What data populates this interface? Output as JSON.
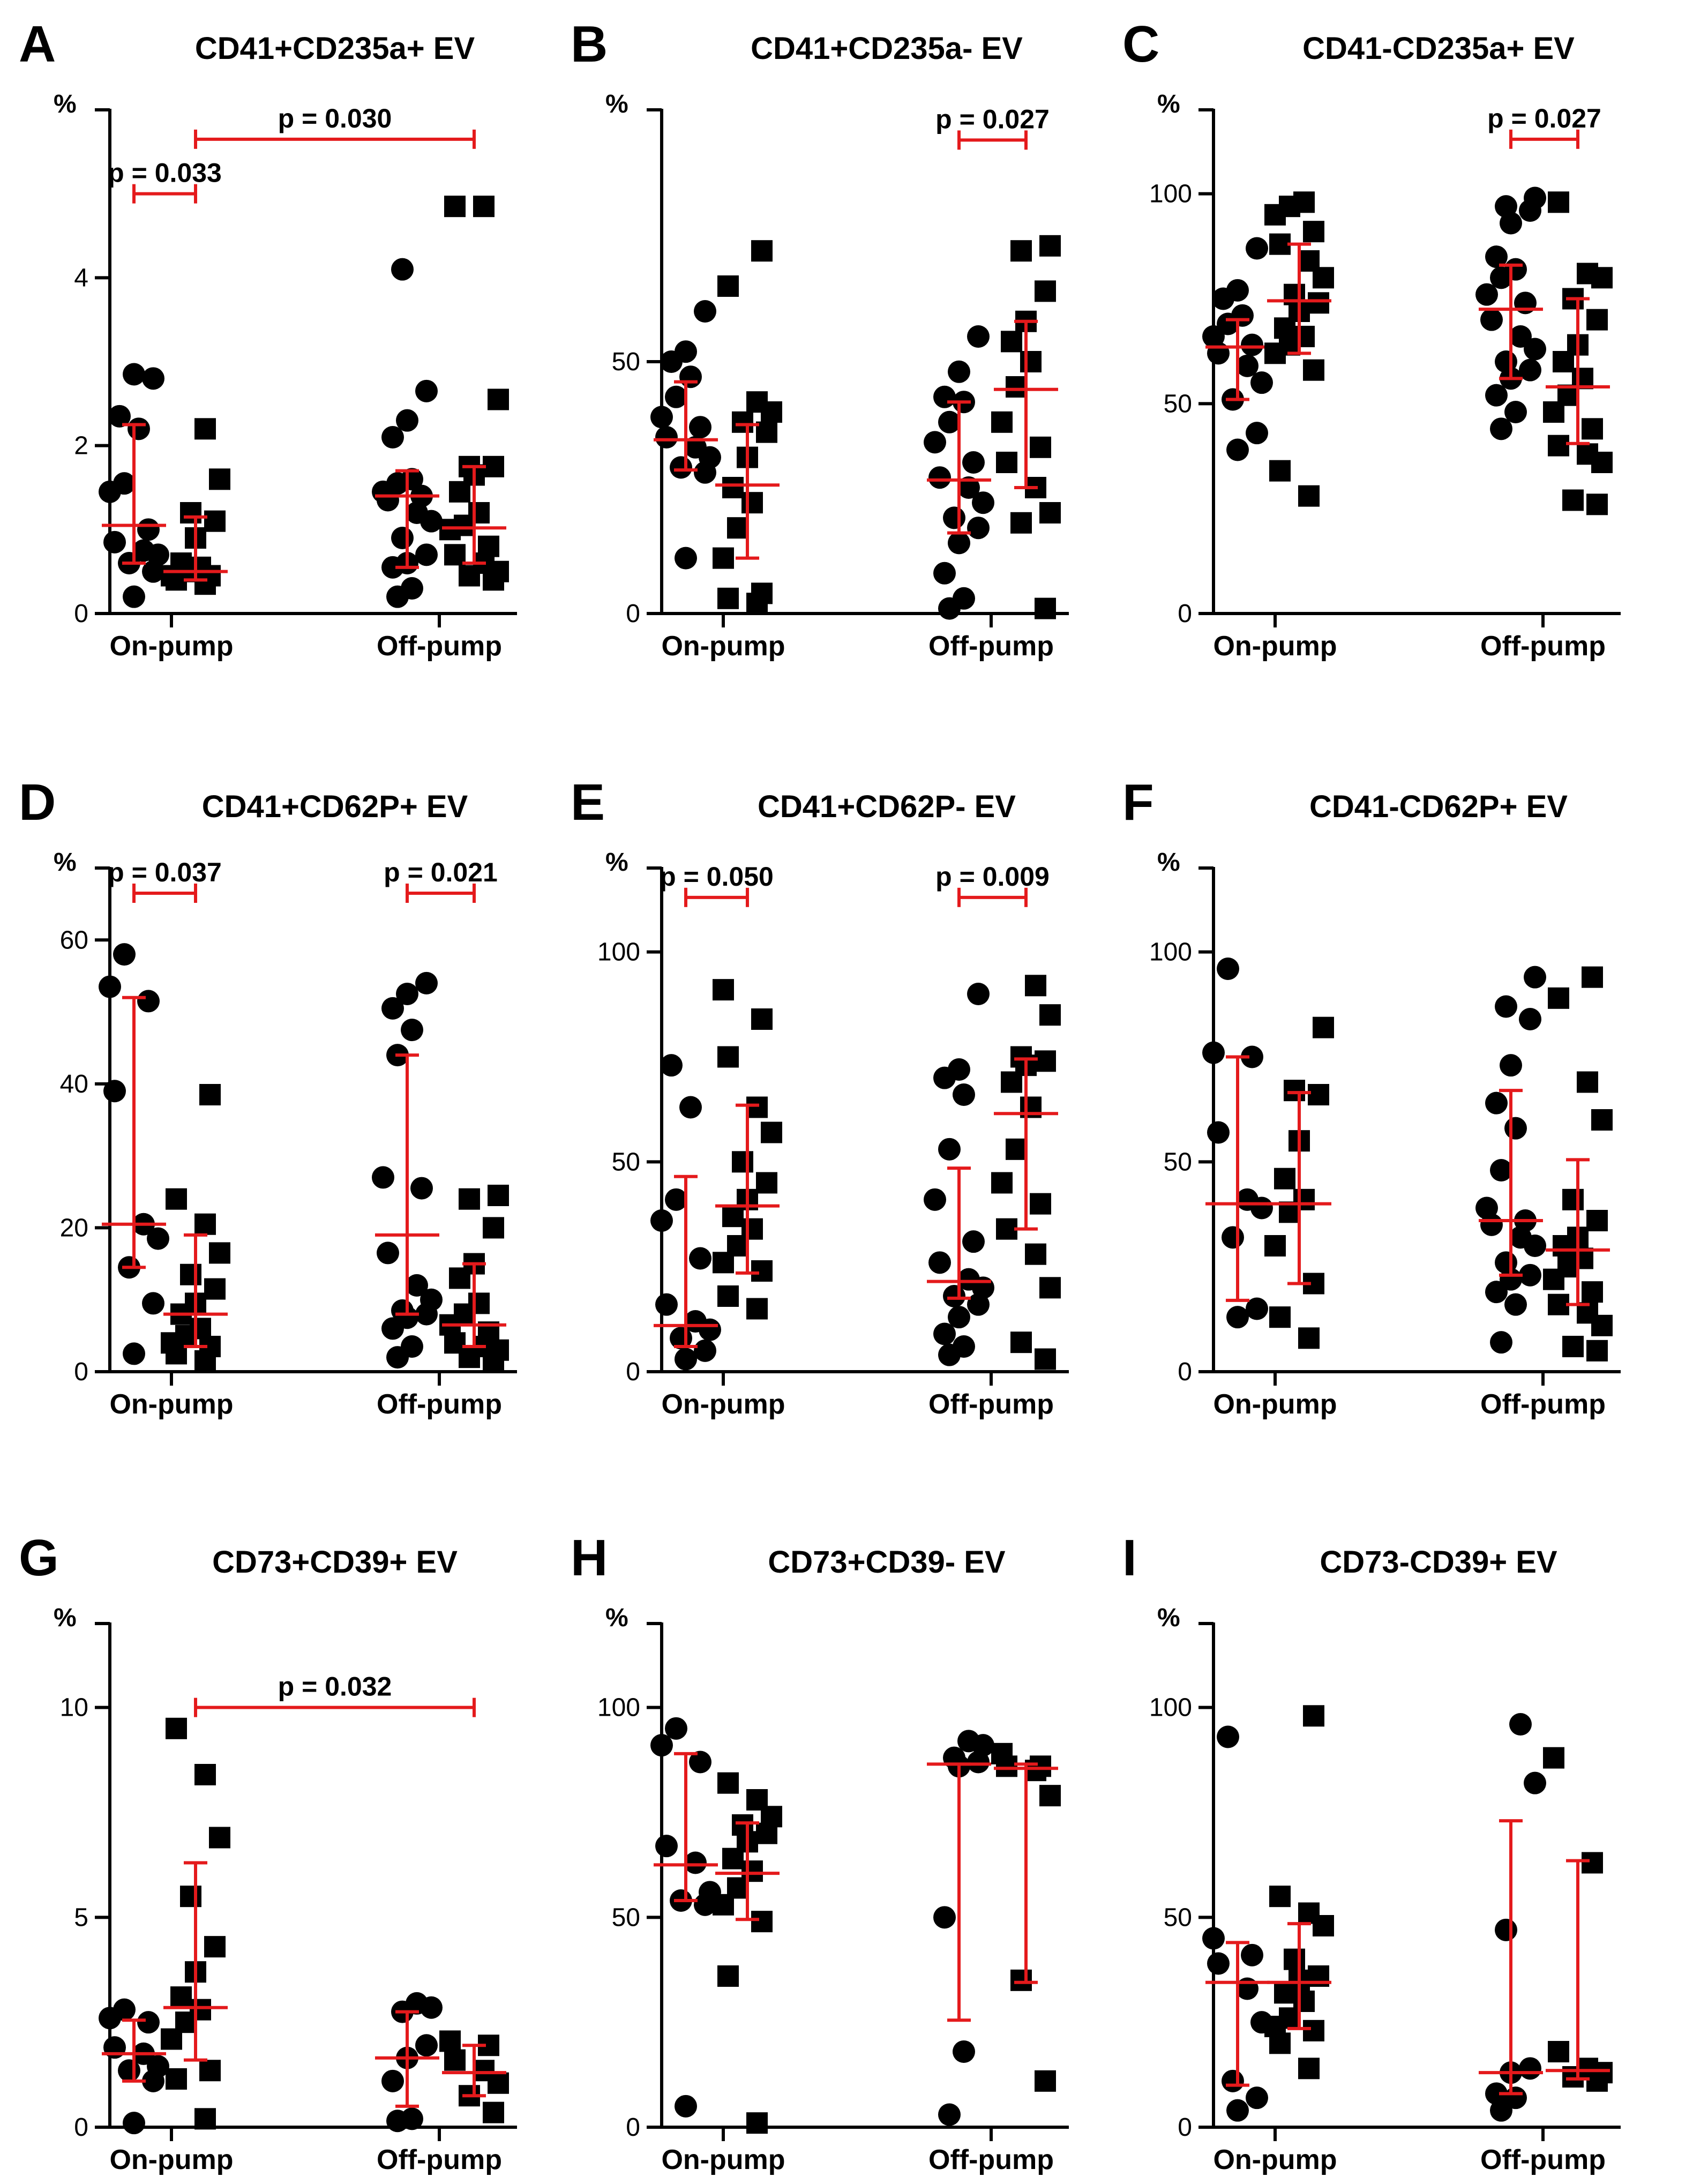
{
  "colors": {
    "stats": "#e41a1c",
    "marker": "#000000",
    "axis": "#000000"
  },
  "chart_data": [
    {
      "type": "scatter",
      "letter": "A",
      "title": "CD41+CD235a+ EV",
      "ylabel": "%",
      "ylim": [
        0,
        6
      ],
      "yticks": [
        0,
        2,
        4
      ],
      "categories": [
        "On-pump",
        "Off-pump"
      ],
      "groups": [
        {
          "marker": "circle",
          "median": 1.05,
          "iqr": [
            0.6,
            2.25
          ],
          "values": [
            0.2,
            0.5,
            0.6,
            0.7,
            0.75,
            0.85,
            1.0,
            1.45,
            1.55,
            2.2,
            2.35,
            2.85,
            2.8
          ]
        },
        {
          "marker": "square",
          "median": 0.5,
          "iqr": [
            0.4,
            1.15
          ],
          "values": [
            0.35,
            0.4,
            0.45,
            0.45,
            0.5,
            0.55,
            0.6,
            0.9,
            1.1,
            1.2,
            1.6,
            2.2
          ]
        },
        {
          "marker": "circle",
          "median": 1.4,
          "iqr": [
            0.55,
            1.7
          ],
          "values": [
            0.2,
            0.3,
            0.55,
            0.6,
            0.7,
            0.9,
            1.1,
            1.2,
            1.35,
            1.4,
            1.45,
            1.55,
            1.6,
            2.1,
            2.3,
            2.65,
            4.1
          ]
        },
        {
          "marker": "square",
          "median": 1.02,
          "iqr": [
            0.6,
            1.75
          ],
          "values": [
            0.4,
            0.45,
            0.5,
            0.6,
            0.7,
            0.8,
            1.0,
            1.05,
            1.2,
            1.45,
            1.65,
            1.75,
            1.75,
            2.55,
            4.85,
            4.85
          ]
        }
      ],
      "comparisons": [
        {
          "from": 0,
          "to": 1,
          "label": "p = 0.033",
          "y": 5.0
        },
        {
          "from": 1,
          "to": 3,
          "label": "p = 0.030",
          "y": 5.65
        }
      ]
    },
    {
      "type": "scatter",
      "letter": "B",
      "title": "CD41+CD235a- EV",
      "ylabel": "%",
      "ylim": [
        0,
        100
      ],
      "yticks": [
        0,
        50
      ],
      "categories": [
        "On-pump",
        "Off-pump"
      ],
      "groups": [
        {
          "marker": "circle",
          "median": 34.5,
          "iqr": [
            28.5,
            46
          ],
          "values": [
            11,
            28,
            29,
            31,
            33,
            35,
            37,
            39,
            43,
            47,
            50,
            52,
            60
          ]
        },
        {
          "marker": "square",
          "median": 25.5,
          "iqr": [
            11,
            37.5
          ],
          "values": [
            2,
            3,
            4,
            11,
            17,
            22,
            25,
            31,
            36,
            38,
            40,
            42,
            65,
            72
          ]
        },
        {
          "marker": "circle",
          "median": 26.5,
          "iqr": [
            16,
            42
          ],
          "values": [
            1,
            3,
            8,
            14,
            17,
            19,
            22,
            25,
            27,
            30,
            34,
            38,
            42,
            43,
            48,
            55
          ]
        },
        {
          "marker": "square",
          "median": 44.5,
          "iqr": [
            25,
            58
          ],
          "values": [
            1,
            18,
            20,
            25,
            30,
            33,
            38,
            45,
            50,
            54,
            58,
            64,
            72,
            73
          ]
        }
      ],
      "comparisons": [
        {
          "from": 2,
          "to": 3,
          "label": "p = 0.027",
          "y": 94
        }
      ]
    },
    {
      "type": "scatter",
      "letter": "C",
      "title": "CD41-CD235a+ EV",
      "ylabel": "%",
      "ylim": [
        0,
        120
      ],
      "yticks": [
        0,
        50,
        100
      ],
      "categories": [
        "On-pump",
        "Off-pump"
      ],
      "groups": [
        {
          "marker": "circle",
          "median": 63.5,
          "iqr": [
            51,
            70
          ],
          "values": [
            39,
            43,
            51,
            55,
            59,
            62,
            64,
            66,
            69,
            71,
            75,
            77,
            87
          ]
        },
        {
          "marker": "square",
          "median": 74.5,
          "iqr": [
            62,
            88
          ],
          "values": [
            28,
            34,
            58,
            62,
            64,
            66,
            68,
            72,
            74,
            76,
            80,
            84,
            88,
            91,
            95,
            97,
            98
          ]
        },
        {
          "marker": "circle",
          "median": 72.5,
          "iqr": [
            56,
            83
          ],
          "values": [
            44,
            48,
            52,
            56,
            58,
            60,
            63,
            66,
            70,
            74,
            76,
            80,
            82,
            85,
            93,
            96,
            97,
            99
          ]
        },
        {
          "marker": "square",
          "median": 54,
          "iqr": [
            40.5,
            75
          ],
          "values": [
            26,
            27,
            36,
            38,
            40,
            44,
            48,
            52,
            56,
            60,
            64,
            70,
            75,
            80,
            81,
            98
          ]
        }
      ],
      "comparisons": [
        {
          "from": 2,
          "to": 3,
          "label": "p = 0.027",
          "y": 113
        }
      ]
    },
    {
      "type": "scatter",
      "letter": "D",
      "title": "CD41+CD62P+ EV",
      "ylabel": "%",
      "ylim": [
        0,
        70
      ],
      "yticks": [
        0,
        20,
        40,
        60
      ],
      "categories": [
        "On-pump",
        "Off-pump"
      ],
      "groups": [
        {
          "marker": "circle",
          "median": 20.5,
          "iqr": [
            14.5,
            52
          ],
          "values": [
            2.5,
            9.5,
            14.5,
            18.5,
            20.5,
            39,
            51.5,
            53.5,
            58
          ]
        },
        {
          "marker": "square",
          "median": 8,
          "iqr": [
            3.5,
            19
          ],
          "values": [
            1.5,
            2.5,
            3.5,
            4,
            5,
            6,
            8,
            9.5,
            11.5,
            13.5,
            16.5,
            20.5,
            24,
            38.5
          ]
        },
        {
          "marker": "circle",
          "median": 19,
          "iqr": [
            8,
            44
          ],
          "values": [
            2,
            3.5,
            6,
            7.5,
            8,
            8.5,
            10,
            12,
            16.5,
            25.5,
            27,
            44,
            47.5,
            50.5,
            52.5,
            54
          ]
        },
        {
          "marker": "square",
          "median": 6.5,
          "iqr": [
            3.5,
            15
          ],
          "values": [
            1.5,
            2,
            3,
            3.5,
            4,
            5.5,
            6.5,
            8,
            9.5,
            13,
            15,
            20,
            24,
            24.5
          ]
        }
      ],
      "comparisons": [
        {
          "from": 0,
          "to": 1,
          "label": "p = 0.037",
          "y": 66.5
        },
        {
          "from": 2,
          "to": 3,
          "label": "p = 0.021",
          "y": 66.5
        }
      ]
    },
    {
      "type": "scatter",
      "letter": "E",
      "title": "CD41+CD62P- EV",
      "ylabel": "%",
      "ylim": [
        0,
        120
      ],
      "yticks": [
        0,
        50,
        100
      ],
      "categories": [
        "On-pump",
        "Off-pump"
      ],
      "groups": [
        {
          "marker": "circle",
          "median": 11,
          "iqr": [
            6,
            46.5
          ],
          "values": [
            3,
            5,
            8,
            10,
            12,
            16,
            27,
            36,
            41,
            63,
            73
          ]
        },
        {
          "marker": "square",
          "median": 39.5,
          "iqr": [
            23.5,
            63.5
          ],
          "values": [
            15,
            18,
            24,
            26,
            30,
            34,
            37,
            41,
            45,
            50,
            57,
            63,
            75,
            84,
            91
          ]
        },
        {
          "marker": "circle",
          "median": 21.5,
          "iqr": [
            17.5,
            48.5
          ],
          "values": [
            4,
            6,
            9,
            13,
            16,
            18,
            20,
            22,
            26,
            31,
            41,
            53,
            66,
            70,
            72,
            90
          ]
        },
        {
          "marker": "square",
          "median": 61.5,
          "iqr": [
            34,
            74.5
          ],
          "values": [
            3,
            7,
            20,
            28,
            34,
            40,
            45,
            53,
            63,
            69,
            73,
            74,
            75,
            85,
            92
          ]
        }
      ],
      "comparisons": [
        {
          "from": 0,
          "to": 1,
          "label": "p = 0.050",
          "y": 113
        },
        {
          "from": 2,
          "to": 3,
          "label": "p = 0.009",
          "y": 113
        }
      ]
    },
    {
      "type": "scatter",
      "letter": "F",
      "title": "CD41-CD62P+ EV",
      "ylabel": "%",
      "ylim": [
        0,
        120
      ],
      "yticks": [
        0,
        50,
        100
      ],
      "categories": [
        "On-pump",
        "Off-pump"
      ],
      "groups": [
        {
          "marker": "circle",
          "median": 40,
          "iqr": [
            17,
            75
          ],
          "values": [
            13,
            15,
            32,
            39,
            41,
            57,
            75,
            76,
            96
          ]
        },
        {
          "marker": "square",
          "median": 40,
          "iqr": [
            21,
            66.5
          ],
          "values": [
            8,
            13,
            21,
            30,
            38,
            41,
            46,
            55,
            66,
            67,
            82
          ]
        },
        {
          "marker": "circle",
          "median": 36,
          "iqr": [
            23,
            67
          ],
          "values": [
            7,
            16,
            19,
            22,
            23,
            26,
            30,
            32,
            35,
            36,
            39,
            48,
            58,
            64,
            73,
            84,
            87,
            94
          ]
        },
        {
          "marker": "square",
          "median": 29,
          "iqr": [
            16,
            50.5
          ],
          "values": [
            5,
            6,
            11,
            14,
            16,
            19,
            22,
            25,
            27,
            30,
            32,
            36,
            41,
            60,
            69,
            89,
            94
          ]
        }
      ],
      "comparisons": []
    },
    {
      "type": "scatter",
      "letter": "G",
      "title": "CD73+CD39+ EV",
      "ylabel": "%",
      "ylim": [
        0,
        12
      ],
      "yticks": [
        0,
        5,
        10
      ],
      "categories": [
        "On-pump",
        "Off-pump"
      ],
      "groups": [
        {
          "marker": "circle",
          "median": 1.75,
          "iqr": [
            1.1,
            2.55
          ],
          "values": [
            0.1,
            1.1,
            1.35,
            1.45,
            1.75,
            1.9,
            2.5,
            2.6,
            2.8
          ]
        },
        {
          "marker": "square",
          "median": 2.85,
          "iqr": [
            1.6,
            6.3
          ],
          "values": [
            0.2,
            1.15,
            1.35,
            2.1,
            2.5,
            2.8,
            3.1,
            3.7,
            4.3,
            5.5,
            6.9,
            8.4,
            9.5
          ]
        },
        {
          "marker": "circle",
          "median": 1.65,
          "iqr": [
            0.5,
            2.75
          ],
          "values": [
            0.15,
            0.2,
            1.1,
            1.65,
            1.95,
            2.75,
            2.85,
            2.95
          ]
        },
        {
          "marker": "square",
          "median": 1.3,
          "iqr": [
            0.75,
            1.95
          ],
          "values": [
            0.35,
            0.75,
            1.05,
            1.35,
            1.6,
            1.95,
            2.05
          ]
        }
      ],
      "comparisons": [
        {
          "from": 1,
          "to": 3,
          "label": "p = 0.032",
          "y": 10.0
        }
      ]
    },
    {
      "type": "scatter",
      "letter": "H",
      "title": "CD73+CD39- EV",
      "ylabel": "%",
      "ylim": [
        0,
        120
      ],
      "yticks": [
        0,
        50,
        100
      ],
      "categories": [
        "On-pump",
        "Off-pump"
      ],
      "groups": [
        {
          "marker": "circle",
          "median": 62.5,
          "iqr": [
            54,
            89
          ],
          "values": [
            5,
            53,
            54,
            56,
            63,
            67,
            87,
            91,
            95
          ]
        },
        {
          "marker": "square",
          "median": 60.5,
          "iqr": [
            49.5,
            72.5
          ],
          "values": [
            1,
            36,
            49,
            53,
            57,
            61,
            64,
            68,
            70,
            72,
            74,
            78,
            82
          ]
        },
        {
          "marker": "circle",
          "median": 86.5,
          "iqr": [
            25.5,
            86.5
          ],
          "values": [
            3,
            18,
            50,
            86,
            87,
            88,
            91,
            92
          ]
        },
        {
          "marker": "square",
          "median": 85.5,
          "iqr": [
            34.5,
            86.5
          ],
          "values": [
            11,
            35,
            79,
            85,
            86,
            86,
            89
          ]
        }
      ],
      "comparisons": []
    },
    {
      "type": "scatter",
      "letter": "I",
      "title": "CD73-CD39+ EV",
      "ylabel": "%",
      "ylim": [
        0,
        120
      ],
      "yticks": [
        0,
        50,
        100
      ],
      "categories": [
        "On-pump",
        "Off-pump"
      ],
      "groups": [
        {
          "marker": "circle",
          "median": 34.5,
          "iqr": [
            10,
            44
          ],
          "values": [
            4,
            7,
            11,
            25,
            33,
            39,
            41,
            45,
            93
          ]
        },
        {
          "marker": "square",
          "median": 34.5,
          "iqr": [
            23.5,
            48.5
          ],
          "values": [
            14,
            20,
            23,
            24,
            26,
            30,
            32,
            35,
            36,
            40,
            48,
            51,
            55,
            98
          ]
        },
        {
          "marker": "circle",
          "median": 13,
          "iqr": [
            8,
            73
          ],
          "values": [
            4,
            7,
            8,
            13,
            14,
            47,
            82,
            96
          ]
        },
        {
          "marker": "square",
          "median": 13.5,
          "iqr": [
            11.5,
            63.5
          ],
          "values": [
            11,
            12,
            13,
            14,
            18,
            63,
            88
          ]
        }
      ],
      "comparisons": []
    }
  ]
}
